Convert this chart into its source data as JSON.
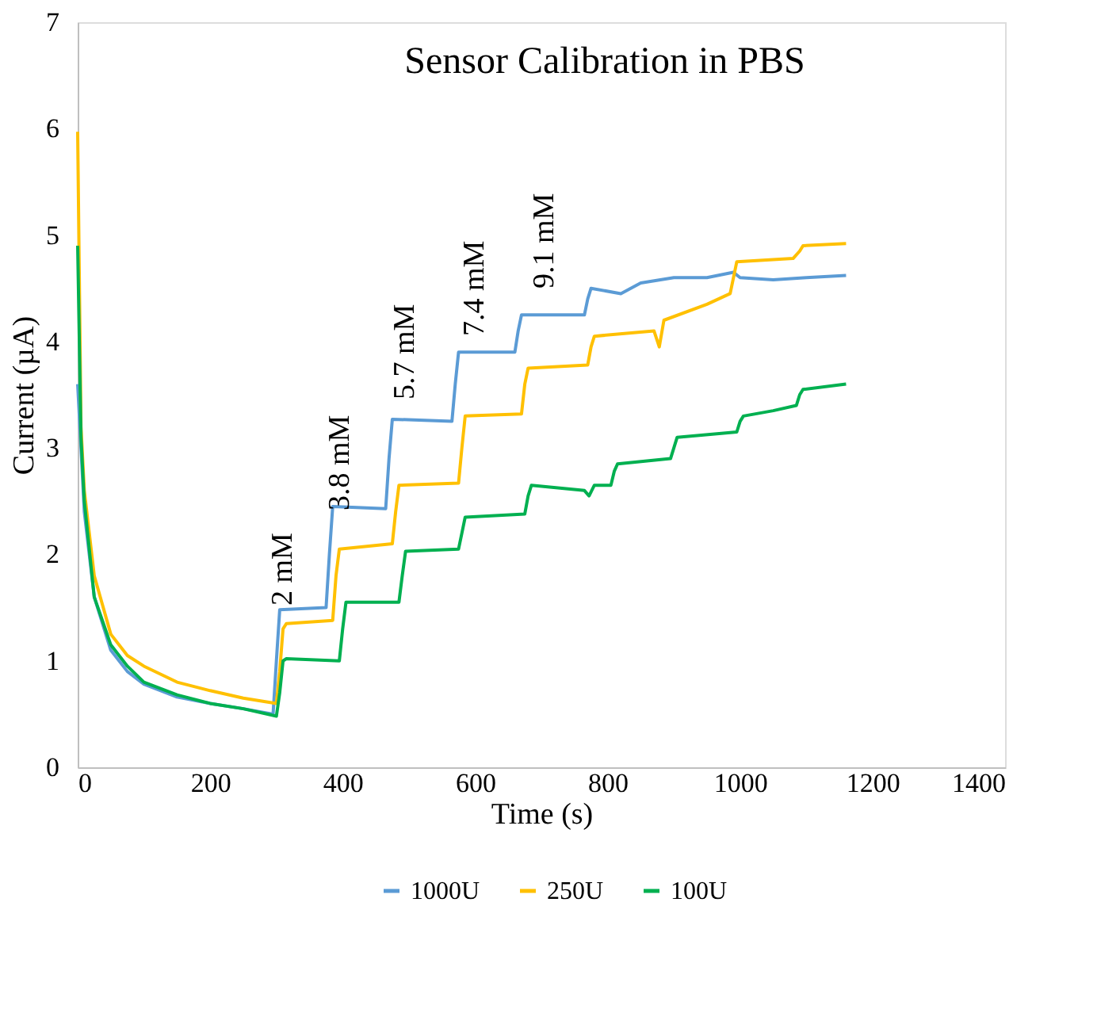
{
  "chart_data": {
    "type": "line",
    "title": "Sensor Calibration in PBS",
    "xlabel": "Time (s)",
    "ylabel": "Current (µA)",
    "xlim": [
      0,
      1400
    ],
    "xticks": [
      0,
      200,
      400,
      600,
      800,
      1000,
      1200,
      1400
    ],
    "ylim": [
      0,
      7
    ],
    "yticks": [
      0,
      1,
      2,
      3,
      4,
      5,
      6,
      7
    ],
    "grid": false,
    "legend": "bottom",
    "marker": "none",
    "line_style": "solid",
    "series": [
      {
        "name": "1000U",
        "color": "#5b9bd5",
        "x": [
          0,
          5,
          10,
          25,
          50,
          75,
          100,
          150,
          200,
          250,
          295,
          300,
          305,
          375,
          380,
          385,
          465,
          470,
          475,
          565,
          570,
          575,
          660,
          665,
          670,
          765,
          770,
          775,
          820,
          850,
          900,
          950,
          990,
          1000,
          1050,
          1100,
          1160
        ],
        "values": [
          3.6,
          3.0,
          2.4,
          1.6,
          1.1,
          0.9,
          0.78,
          0.66,
          0.6,
          0.55,
          0.5,
          1.0,
          1.48,
          1.5,
          2.0,
          2.45,
          2.43,
          2.9,
          3.27,
          3.25,
          3.6,
          3.9,
          3.9,
          4.1,
          4.25,
          4.25,
          4.4,
          4.5,
          4.45,
          4.55,
          4.6,
          4.6,
          4.65,
          4.6,
          4.58,
          4.6,
          4.62
        ]
      },
      {
        "name": "250U",
        "color": "#ffc000",
        "x": [
          0,
          5,
          10,
          25,
          50,
          75,
          100,
          150,
          200,
          250,
          300,
          305,
          310,
          315,
          385,
          390,
          395,
          475,
          480,
          485,
          575,
          580,
          585,
          670,
          675,
          680,
          770,
          775,
          780,
          870,
          878,
          885,
          950,
          985,
          990,
          995,
          1080,
          1090,
          1095,
          1160
        ],
        "values": [
          5.97,
          3.2,
          2.6,
          1.8,
          1.25,
          1.05,
          0.95,
          0.8,
          0.72,
          0.65,
          0.6,
          0.9,
          1.3,
          1.35,
          1.38,
          1.8,
          2.05,
          2.1,
          2.4,
          2.65,
          2.67,
          3.0,
          3.3,
          3.32,
          3.6,
          3.75,
          3.78,
          3.95,
          4.05,
          4.1,
          3.95,
          4.2,
          4.35,
          4.45,
          4.6,
          4.75,
          4.78,
          4.85,
          4.9,
          4.92
        ]
      },
      {
        "name": "100U",
        "color": "#00b050",
        "x": [
          0,
          5,
          10,
          25,
          50,
          75,
          100,
          150,
          200,
          250,
          300,
          305,
          310,
          315,
          395,
          400,
          405,
          485,
          490,
          495,
          575,
          580,
          585,
          675,
          680,
          685,
          765,
          772,
          780,
          805,
          810,
          815,
          895,
          900,
          905,
          995,
          1000,
          1005,
          1050,
          1085,
          1090,
          1095,
          1160
        ],
        "values": [
          4.9,
          3.1,
          2.5,
          1.6,
          1.15,
          0.95,
          0.8,
          0.68,
          0.6,
          0.55,
          0.48,
          0.7,
          1.0,
          1.02,
          1.0,
          1.3,
          1.55,
          1.55,
          1.8,
          2.03,
          2.05,
          2.2,
          2.35,
          2.38,
          2.55,
          2.65,
          2.6,
          2.55,
          2.65,
          2.65,
          2.78,
          2.85,
          2.9,
          3.0,
          3.1,
          3.15,
          3.25,
          3.3,
          3.35,
          3.4,
          3.5,
          3.55,
          3.6
        ]
      }
    ],
    "annotations": [
      "2 mM",
      "3.8 mM",
      "5.7 mM",
      "7.4 mM",
      "9.1 mM"
    ]
  }
}
